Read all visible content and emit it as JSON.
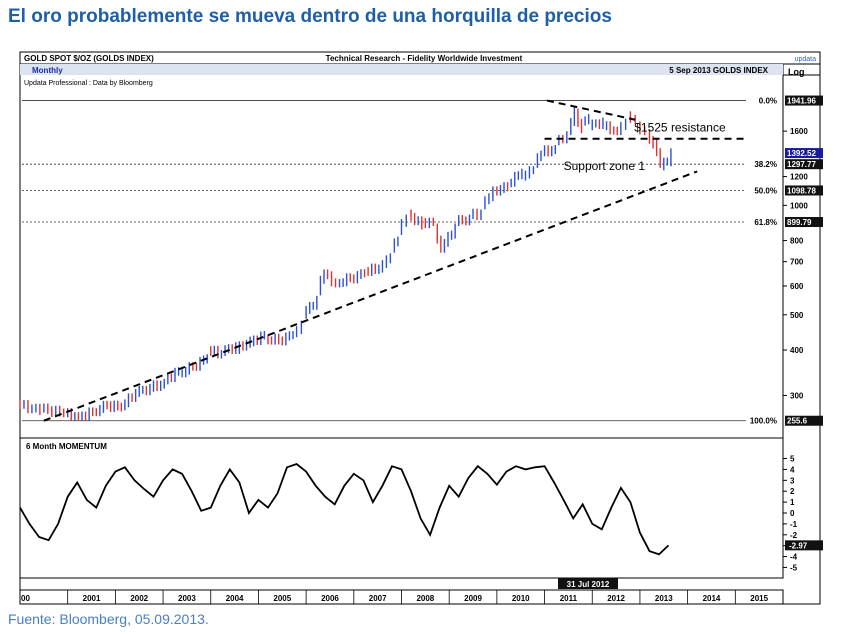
{
  "headline": "El oro probablemente se mueva dentro de una horquilla de precios",
  "source": "Fuente: Bloomberg, 05.09.2013.",
  "header": {
    "left": "GOLD SPOT $/OZ (GOLDS INDEX)",
    "center": "Technical Research - Fidelity Worldwide Investment",
    "logo": "updata",
    "date_index": "5 Sep 2013  GOLDS INDEX",
    "periodicity": "Monthly",
    "data_credit": "Updata Professional : Data by Bloomberg",
    "scale": "Log"
  },
  "colors": {
    "up": "#2a4fd8",
    "down": "#e03030",
    "price_tag": "#1a1aa0",
    "line": "#000000"
  },
  "chart_data": [
    {
      "type": "candlestick",
      "scale": "log",
      "ylim": [
        238,
        2050
      ],
      "xlim": [
        2000.0,
        2016.0
      ],
      "yticks": [
        300,
        400,
        500,
        600,
        700,
        800,
        1000,
        1200,
        1600
      ],
      "ohlc_monthly_approx": [
        [
          2000.0,
          285,
          272
        ],
        [
          2000.5,
          276,
          268
        ],
        [
          2001.0,
          268,
          262
        ],
        [
          2001.3,
          262,
          270
        ],
        [
          2001.6,
          270,
          282
        ],
        [
          2001.9,
          282,
          278
        ],
        [
          2002.2,
          280,
          305
        ],
        [
          2002.5,
          305,
          315
        ],
        [
          2002.8,
          315,
          325
        ],
        [
          2003.1,
          330,
          350
        ],
        [
          2003.4,
          345,
          360
        ],
        [
          2003.7,
          360,
          380
        ],
        [
          2004.0,
          400,
          390
        ],
        [
          2004.3,
          395,
          410
        ],
        [
          2004.6,
          400,
          425
        ],
        [
          2004.9,
          420,
          440
        ],
        [
          2005.2,
          430,
          425
        ],
        [
          2005.5,
          425,
          440
        ],
        [
          2005.8,
          445,
          470
        ],
        [
          2006.0,
          500,
          550
        ],
        [
          2006.3,
          580,
          650
        ],
        [
          2006.45,
          650,
          610
        ],
        [
          2006.7,
          610,
          630
        ],
        [
          2007.0,
          630,
          650
        ],
        [
          2007.3,
          660,
          670
        ],
        [
          2007.6,
          670,
          720
        ],
        [
          2007.85,
          760,
          800
        ],
        [
          2008.0,
          850,
          920
        ],
        [
          2008.2,
          950,
          880
        ],
        [
          2008.5,
          900,
          900
        ],
        [
          2008.75,
          870,
          760
        ],
        [
          2008.9,
          760,
          870
        ],
        [
          2009.2,
          900,
          920
        ],
        [
          2009.5,
          940,
          950
        ],
        [
          2009.75,
          1000,
          1100
        ],
        [
          2010.0,
          1100,
          1120
        ],
        [
          2010.3,
          1150,
          1230
        ],
        [
          2010.6,
          1200,
          1250
        ],
        [
          2010.85,
          1300,
          1380
        ],
        [
          2011.0,
          1400,
          1430
        ],
        [
          2011.3,
          1500,
          1560
        ],
        [
          2011.55,
          1600,
          1830
        ],
        [
          2011.7,
          1800,
          1620
        ],
        [
          2011.85,
          1700,
          1740
        ],
        [
          2012.0,
          1650,
          1700
        ],
        [
          2012.3,
          1650,
          1600
        ],
        [
          2012.6,
          1600,
          1690
        ],
        [
          2012.8,
          1770,
          1720
        ],
        [
          2013.0,
          1660,
          1600
        ],
        [
          2013.2,
          1580,
          1470
        ],
        [
          2013.35,
          1480,
          1300
        ],
        [
          2013.5,
          1280,
          1320
        ],
        [
          2013.65,
          1320,
          1392.52
        ]
      ],
      "price_labels": [
        {
          "value": 1941.96,
          "label": "1941.96"
        },
        {
          "value": 1392.52,
          "label": "1392.52",
          "current": true
        },
        {
          "value": 1297.77,
          "label": "1297.77"
        },
        {
          "value": 1098.78,
          "label": "1098.78"
        },
        {
          "value": 899.79,
          "label": "899.79"
        },
        {
          "value": 255.6,
          "label": "255.6"
        }
      ],
      "fibonacci": [
        {
          "label": "0.0%",
          "value": 1941.96
        },
        {
          "label": "38.2%",
          "value": 1297.77
        },
        {
          "label": "50.0%",
          "value": 1098.78
        },
        {
          "label": "61.8%",
          "value": 899.79
        },
        {
          "label": "100.0%",
          "value": 255.6
        }
      ],
      "annotations": [
        {
          "text": "$1525 resistance",
          "value": 1525,
          "x": 2013.3
        },
        {
          "text": "Support zone 1",
          "value": 1250,
          "x": 2011.4
        }
      ],
      "trendlines": [
        {
          "name": "support",
          "points": [
            [
              2000.5,
              255.6
            ],
            [
              2014.2,
              1240
            ]
          ]
        },
        {
          "name": "resistance",
          "points": [
            [
              2011.05,
              1941.96
            ],
            [
              2012.9,
              1720
            ]
          ]
        },
        {
          "name": "resistance-1525",
          "points": [
            [
              2011.0,
              1525
            ],
            [
              2015.2,
              1525
            ]
          ]
        }
      ]
    },
    {
      "type": "line",
      "title": "6 Month MOMENTUM",
      "ylim": [
        -5.6,
        5.6
      ],
      "yticks": [
        5,
        4,
        3,
        2,
        1,
        0,
        -1,
        -2,
        -3,
        -4,
        -5
      ],
      "current_value_label": "-2.97",
      "series": [
        {
          "x": [
            2000.0,
            2000.2,
            2000.4,
            2000.6,
            2000.8,
            2001.0,
            2001.2,
            2001.4,
            2001.6,
            2001.8,
            2002.0,
            2002.2,
            2002.4,
            2002.6,
            2002.8,
            2003.0,
            2003.2,
            2003.4,
            2003.6,
            2003.8,
            2004.0,
            2004.2,
            2004.4,
            2004.6,
            2004.8,
            2005.0,
            2005.2,
            2005.4,
            2005.6,
            2005.8,
            2006.0,
            2006.2,
            2006.4,
            2006.6,
            2006.8,
            2007.0,
            2007.2,
            2007.4,
            2007.6,
            2007.8,
            2008.0,
            2008.2,
            2008.4,
            2008.6,
            2008.8,
            2009.0,
            2009.2,
            2009.4,
            2009.6,
            2009.8,
            2010.0,
            2010.2,
            2010.4,
            2010.6,
            2010.8,
            2011.0,
            2011.2,
            2011.4,
            2011.6,
            2011.8,
            2012.0,
            2012.2,
            2012.4,
            2012.6,
            2012.8,
            2013.0,
            2013.2,
            2013.4,
            2013.6
          ],
          "values": [
            0.5,
            -1.0,
            -2.2,
            -2.5,
            -1.0,
            1.5,
            2.8,
            1.2,
            0.5,
            2.5,
            3.8,
            4.2,
            3.0,
            2.2,
            1.5,
            3.0,
            4.0,
            3.6,
            2.0,
            0.2,
            0.5,
            2.5,
            4.0,
            2.8,
            0.0,
            1.2,
            0.5,
            1.8,
            4.2,
            4.5,
            3.8,
            2.5,
            1.5,
            0.8,
            2.5,
            3.6,
            3.0,
            1.0,
            2.5,
            4.3,
            4.0,
            2.0,
            -0.5,
            -2.0,
            0.5,
            2.5,
            1.5,
            3.2,
            4.3,
            3.6,
            2.6,
            3.8,
            4.3,
            4.0,
            4.2,
            4.3,
            2.8,
            1.2,
            -0.5,
            0.8,
            -1.0,
            -1.5,
            0.5,
            2.3,
            1.0,
            -1.8,
            -3.5,
            -3.8,
            -2.97
          ]
        }
      ]
    }
  ],
  "x_axis_labels": [
    "00",
    "2001",
    "2002",
    "2003",
    "2004",
    "2005",
    "2006",
    "2007",
    "2008",
    "2009",
    "2010",
    "2011",
    "2012",
    "2013",
    "2014",
    "2015"
  ],
  "x_marker": "31 Jul 2012"
}
